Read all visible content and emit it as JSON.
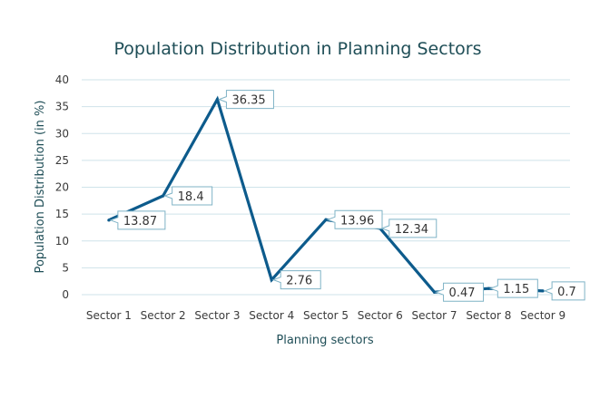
{
  "chart_data": {
    "type": "line",
    "title": "Population Distribution in Planning Sectors",
    "xlabel": "Planning sectors",
    "ylabel": "Population Distribution (in %)",
    "categories": [
      "Sector 1",
      "Sector 2",
      "Sector 3",
      "Sector 4",
      "Sector 5",
      "Sector 6",
      "Sector 7",
      "Sector 8",
      "Sector 9"
    ],
    "series": [
      {
        "values": [
          13.87,
          18.4,
          36.35,
          2.76,
          13.96,
          12.34,
          0.47,
          1.15,
          0.7
        ],
        "labels": [
          "13.87",
          "18.4",
          "36.35",
          "2.76",
          "13.96",
          "12.34",
          "0.47",
          "1.15",
          "0.7"
        ],
        "color": "#0d5b8c"
      }
    ],
    "ylim": [
      0,
      40
    ],
    "yticks": [
      "0",
      "5",
      "10",
      "15",
      "20",
      "25",
      "30",
      "35",
      "40"
    ],
    "grid": true,
    "legend": "none"
  }
}
